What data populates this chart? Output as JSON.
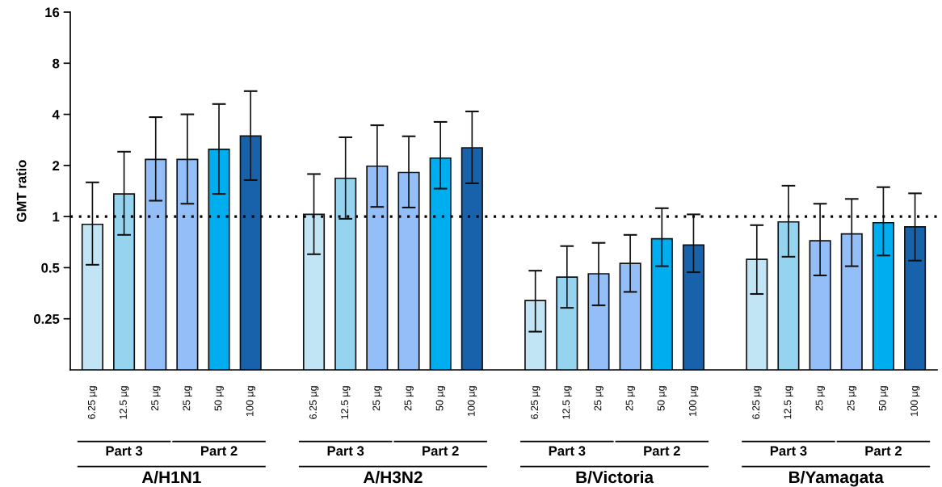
{
  "chart_data": {
    "type": "bar",
    "ylabel": "GMT ratio",
    "log": true,
    "categories": [
      "6.25 µg",
      "12.5 µg",
      "25 µg",
      "25 µg",
      "50 µg",
      "100 µg",
      null,
      "6.25 µg",
      "12.5 µg",
      "25 µg",
      "25 µg",
      "50 µg",
      "100 µg",
      null,
      "6.25 µg",
      "12.5 µg",
      "25 µg",
      "25 µg",
      "50 µg",
      "100 µg",
      null,
      "6.25 µg",
      "12.5 µg",
      "25 µg",
      "25 µg",
      "50 µg",
      "100 µg"
    ],
    "values": [
      0.9,
      1.36,
      2.17,
      2.17,
      2.49,
      2.98,
      null,
      1.03,
      1.68,
      1.98,
      1.82,
      2.21,
      2.54,
      null,
      0.32,
      0.44,
      0.46,
      0.53,
      0.74,
      0.68,
      null,
      0.56,
      0.93,
      0.72,
      0.79,
      0.92,
      0.87
    ],
    "errors": [
      [
        0.52,
        1.59
      ],
      [
        0.78,
        2.41
      ],
      [
        1.24,
        3.85
      ],
      [
        1.19,
        4.0
      ],
      [
        1.36,
        4.6
      ],
      [
        1.64,
        5.48
      ],
      null,
      [
        0.6,
        1.78
      ],
      [
        0.97,
        2.93
      ],
      [
        1.14,
        3.45
      ],
      [
        1.13,
        2.97
      ],
      [
        1.46,
        3.61
      ],
      [
        1.57,
        4.16
      ],
      null,
      [
        0.21,
        0.48
      ],
      [
        0.29,
        0.67
      ],
      [
        0.3,
        0.7
      ],
      [
        0.36,
        0.78
      ],
      [
        0.51,
        1.12
      ],
      [
        0.47,
        1.03
      ],
      null,
      [
        0.35,
        0.89
      ],
      [
        0.58,
        1.52
      ],
      [
        0.45,
        1.19
      ],
      [
        0.51,
        1.27
      ],
      [
        0.59,
        1.49
      ],
      [
        0.55,
        1.37
      ]
    ],
    "colors": [
      "#c2e5f6",
      "#96d3ef",
      "#93bef8",
      "#93bef8",
      "#00aeef",
      "#1862ab",
      null,
      "#c2e5f6",
      "#96d3ef",
      "#93bef8",
      "#93bef8",
      "#00aeef",
      "#1862ab",
      null,
      "#c2e5f6",
      "#96d3ef",
      "#93bef8",
      "#93bef8",
      "#00aeef",
      "#1862ab",
      null,
      "#c2e5f6",
      "#96d3ef",
      "#93bef8",
      "#93bef8",
      "#00aeef",
      "#1862ab"
    ],
    "ylim": [
      0.125,
      16
    ],
    "yticks": [
      0.25,
      0.5,
      1,
      2,
      4,
      8,
      16
    ],
    "ref_lines": [
      {
        "axis": "y",
        "value": 1,
        "line_style": "dotted",
        "color": "#000000"
      }
    ],
    "annotations": [
      "Part 3",
      "Part 2",
      "A/H1N1",
      "Part 3",
      "Part 2",
      "A/H3N2",
      "Part 3",
      "Part 2",
      "B/Victoria",
      "Part 3",
      "Part 2",
      "B/Yamagata"
    ],
    "grid": false,
    "legend": false
  }
}
